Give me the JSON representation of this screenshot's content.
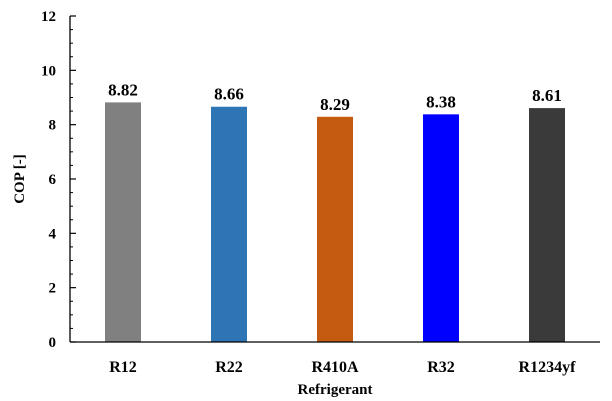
{
  "chart_data": {
    "type": "bar",
    "title": "",
    "xlabel": "Refrigerant",
    "ylabel": "COP [-]",
    "categories": [
      "R12",
      "R22",
      "R410A",
      "R32",
      "R1234yf"
    ],
    "values": [
      8.82,
      8.66,
      8.29,
      8.38,
      8.61
    ],
    "value_labels": [
      "8.82",
      "8.66",
      "8.29",
      "8.38",
      "8.61"
    ],
    "colors": [
      "#808080",
      "#2E75B6",
      "#C55A11",
      "#0000FF",
      "#3A3A3A"
    ],
    "ylim": [
      0,
      12
    ],
    "yticks": [
      0,
      2,
      4,
      6,
      8,
      10,
      12
    ],
    "ytick_labels": [
      "0",
      "2",
      "4",
      "6",
      "8",
      "10",
      "12"
    ],
    "grid": false,
    "legend": "none"
  }
}
